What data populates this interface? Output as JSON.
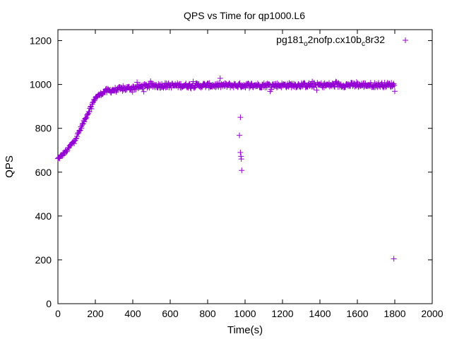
{
  "chart_data": {
    "type": "scatter",
    "title": "QPS vs Time for qp1000.L6",
    "xlabel": "Time(s)",
    "ylabel": "QPS",
    "xlim": [
      0,
      2000
    ],
    "ylim": [
      0,
      1250
    ],
    "xticks": [
      "0",
      "200",
      "400",
      "600",
      "800",
      "1000",
      "1200",
      "1400",
      "1600",
      "1800",
      "2000"
    ],
    "yticks": [
      "0",
      "200",
      "400",
      "600",
      "800",
      "1000",
      "1200"
    ],
    "grid": false,
    "legend_position": "top-right",
    "series": [
      {
        "name_parts": [
          "pg181",
          "o",
          "2nofp.cx10b",
          "c",
          "8r32"
        ],
        "color": "#9400d3",
        "marker": "plus",
        "trend": [
          {
            "t": 0,
            "qps": 660
          },
          {
            "t": 50,
            "qps": 700
          },
          {
            "t": 100,
            "qps": 760
          },
          {
            "t": 150,
            "qps": 850
          },
          {
            "t": 200,
            "qps": 940
          },
          {
            "t": 250,
            "qps": 968
          },
          {
            "t": 300,
            "qps": 975
          },
          {
            "t": 400,
            "qps": 985
          },
          {
            "t": 500,
            "qps": 995
          },
          {
            "t": 1800,
            "qps": 998
          }
        ],
        "outliers": [
          {
            "t": 975,
            "qps": 850
          },
          {
            "t": 970,
            "qps": 768
          },
          {
            "t": 975,
            "qps": 690
          },
          {
            "t": 978,
            "qps": 672
          },
          {
            "t": 980,
            "qps": 660
          },
          {
            "t": 982,
            "qps": 608
          },
          {
            "t": 1795,
            "qps": 205
          }
        ]
      }
    ]
  }
}
